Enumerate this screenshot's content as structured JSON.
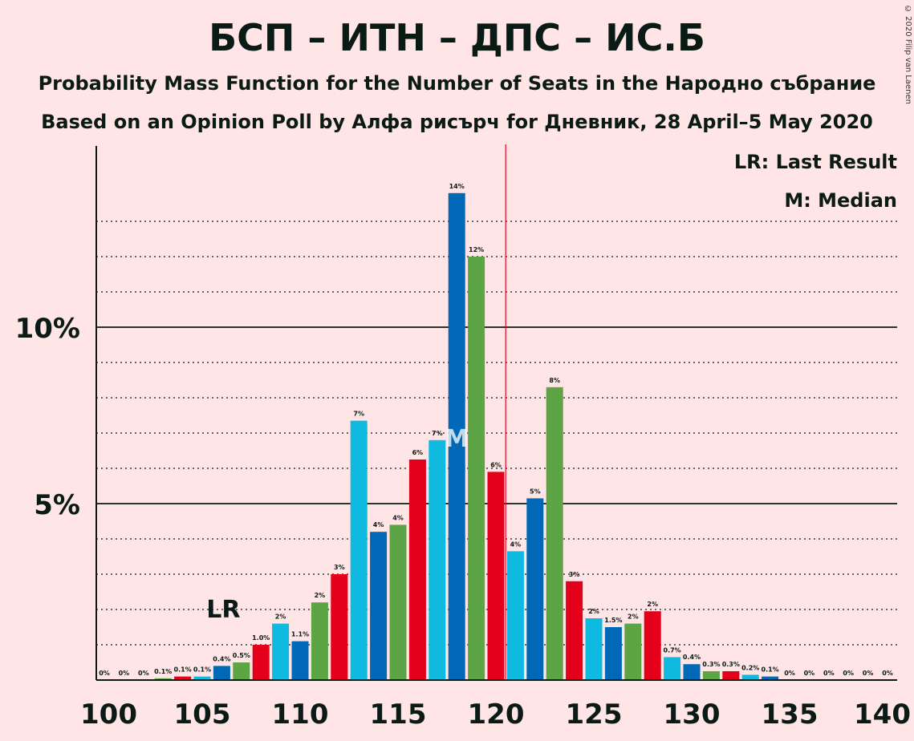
{
  "chart_data": {
    "type": "bar",
    "title": "БСП – ИТН – ДПС – ИС.Б",
    "subtitle": "Probability Mass Function for the Number of Seats in the Народно събрание",
    "subtitle2": "Based on an Opinion Poll by Алфа рисърч for Дневник, 28 April–5 May 2020",
    "copyright": "© 2020 Filip van Laenen",
    "legend": [
      "LR: Last Result",
      "M: Median"
    ],
    "last_result": {
      "x": 106,
      "label": "LR"
    },
    "median": {
      "x": 118,
      "label": "M"
    },
    "majority_line": 120.5,
    "xlim": [
      100,
      140
    ],
    "ylim": [
      0,
      15
    ],
    "x_ticks": [
      100,
      105,
      110,
      115,
      120,
      125,
      130,
      135,
      140
    ],
    "y_ticks": [
      {
        "value": 5,
        "label": "5%"
      },
      {
        "value": 10,
        "label": "10%"
      }
    ],
    "colors": [
      "#E4001B",
      "#0EBAE0",
      "#0068B7",
      "#5DA444"
    ],
    "x": [
      100,
      101,
      102,
      103,
      104,
      105,
      106,
      107,
      108,
      109,
      110,
      111,
      112,
      113,
      114,
      115,
      116,
      117,
      118,
      119,
      120,
      121,
      122,
      123,
      124,
      125,
      126,
      127,
      128,
      129,
      130,
      131,
      132,
      133,
      134,
      135,
      136,
      137,
      138,
      139,
      140
    ],
    "values": [
      0,
      0,
      0,
      0.05,
      0.1,
      0.1,
      0.4,
      0.5,
      1.0,
      1.6,
      1.1,
      2.2,
      3.0,
      7.35,
      4.2,
      4.4,
      6.25,
      6.8,
      13.8,
      12.0,
      5.9,
      3.65,
      5.15,
      8.3,
      2.8,
      1.75,
      1.5,
      1.6,
      1.95,
      0.65,
      0.45,
      0.25,
      0.25,
      0.15,
      0.1,
      0,
      0,
      0,
      0,
      0,
      0
    ],
    "labels": [
      "0%",
      "0%",
      "0%",
      "0.1%",
      "0.1%",
      "0.1%",
      "0.4%",
      "0.5%",
      "1.0%",
      "2%",
      "1.1%",
      "2%",
      "3%",
      "7%",
      "4%",
      "4%",
      "6%",
      "7%",
      "14%",
      "12%",
      "6%",
      "4%",
      "5%",
      "8%",
      "3%",
      "2%",
      "1.5%",
      "2%",
      "2%",
      "0.7%",
      "0.4%",
      "0.3%",
      "0.3%",
      "0.2%",
      "0.1%",
      "0%",
      "0%",
      "0%",
      "0%",
      "0%",
      "0%"
    ]
  }
}
